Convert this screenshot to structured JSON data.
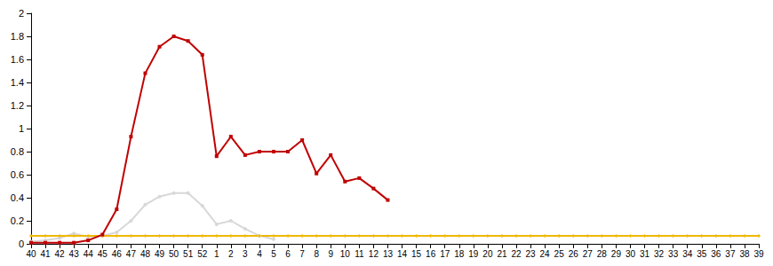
{
  "chart_data": {
    "type": "line",
    "categories": [
      40,
      41,
      42,
      43,
      44,
      45,
      46,
      47,
      48,
      49,
      50,
      51,
      52,
      1,
      2,
      3,
      4,
      5,
      6,
      7,
      8,
      9,
      10,
      11,
      12,
      13,
      14,
      15,
      16,
      17,
      18,
      19,
      20,
      21,
      22,
      23,
      24,
      25,
      26,
      27,
      28,
      29,
      30,
      31,
      32,
      33,
      34,
      35,
      36,
      37,
      38,
      39
    ],
    "series": [
      {
        "color": "#d8d8d8",
        "marker": "circle",
        "values": [
          0.02,
          0.03,
          0.05,
          0.09,
          0.06,
          0.07,
          0.1,
          0.2,
          0.34,
          0.41,
          0.44,
          0.44,
          0.33,
          0.17,
          0.2,
          0.13,
          0.07,
          0.04,
          null,
          null,
          null,
          null,
          null,
          null,
          null,
          null,
          null,
          null,
          null,
          null,
          null,
          null,
          null,
          null,
          null,
          null,
          null,
          null,
          null,
          null,
          null,
          null,
          null,
          null,
          null,
          null,
          null,
          null,
          null,
          null,
          null,
          null
        ]
      },
      {
        "color": "#f0b800",
        "marker": "diamond",
        "values": [
          0.07,
          0.07,
          0.07,
          0.07,
          0.07,
          0.07,
          0.07,
          0.07,
          0.07,
          0.07,
          0.07,
          0.07,
          0.07,
          0.07,
          0.07,
          0.07,
          0.07,
          0.07,
          0.07,
          0.07,
          0.07,
          0.07,
          0.07,
          0.07,
          0.07,
          0.07,
          0.07,
          0.07,
          0.07,
          0.07,
          0.07,
          0.07,
          0.07,
          0.07,
          0.07,
          0.07,
          0.07,
          0.07,
          0.07,
          0.07,
          0.07,
          0.07,
          0.07,
          0.07,
          0.07,
          0.07,
          0.07,
          0.07,
          0.07,
          0.07,
          0.07,
          0.07
        ]
      },
      {
        "color": "#c00000",
        "marker": "square",
        "values": [
          0.01,
          0.01,
          0.01,
          0.01,
          0.03,
          0.08,
          0.3,
          0.93,
          1.48,
          1.71,
          1.8,
          1.76,
          1.64,
          0.76,
          0.93,
          0.77,
          0.8,
          0.8,
          0.8,
          0.9,
          0.61,
          0.77,
          0.54,
          0.57,
          0.48,
          0.38,
          null,
          null,
          null,
          null,
          null,
          null,
          null,
          null,
          null,
          null,
          null,
          null,
          null,
          null,
          null,
          null,
          null,
          null,
          null,
          null,
          null,
          null,
          null,
          null,
          null,
          null
        ]
      }
    ],
    "ylim": [
      0,
      2
    ],
    "yticks": [
      0,
      0.2,
      0.4,
      0.6,
      0.8,
      1,
      1.2,
      1.4,
      1.6,
      1.8,
      2
    ],
    "grid": false
  }
}
